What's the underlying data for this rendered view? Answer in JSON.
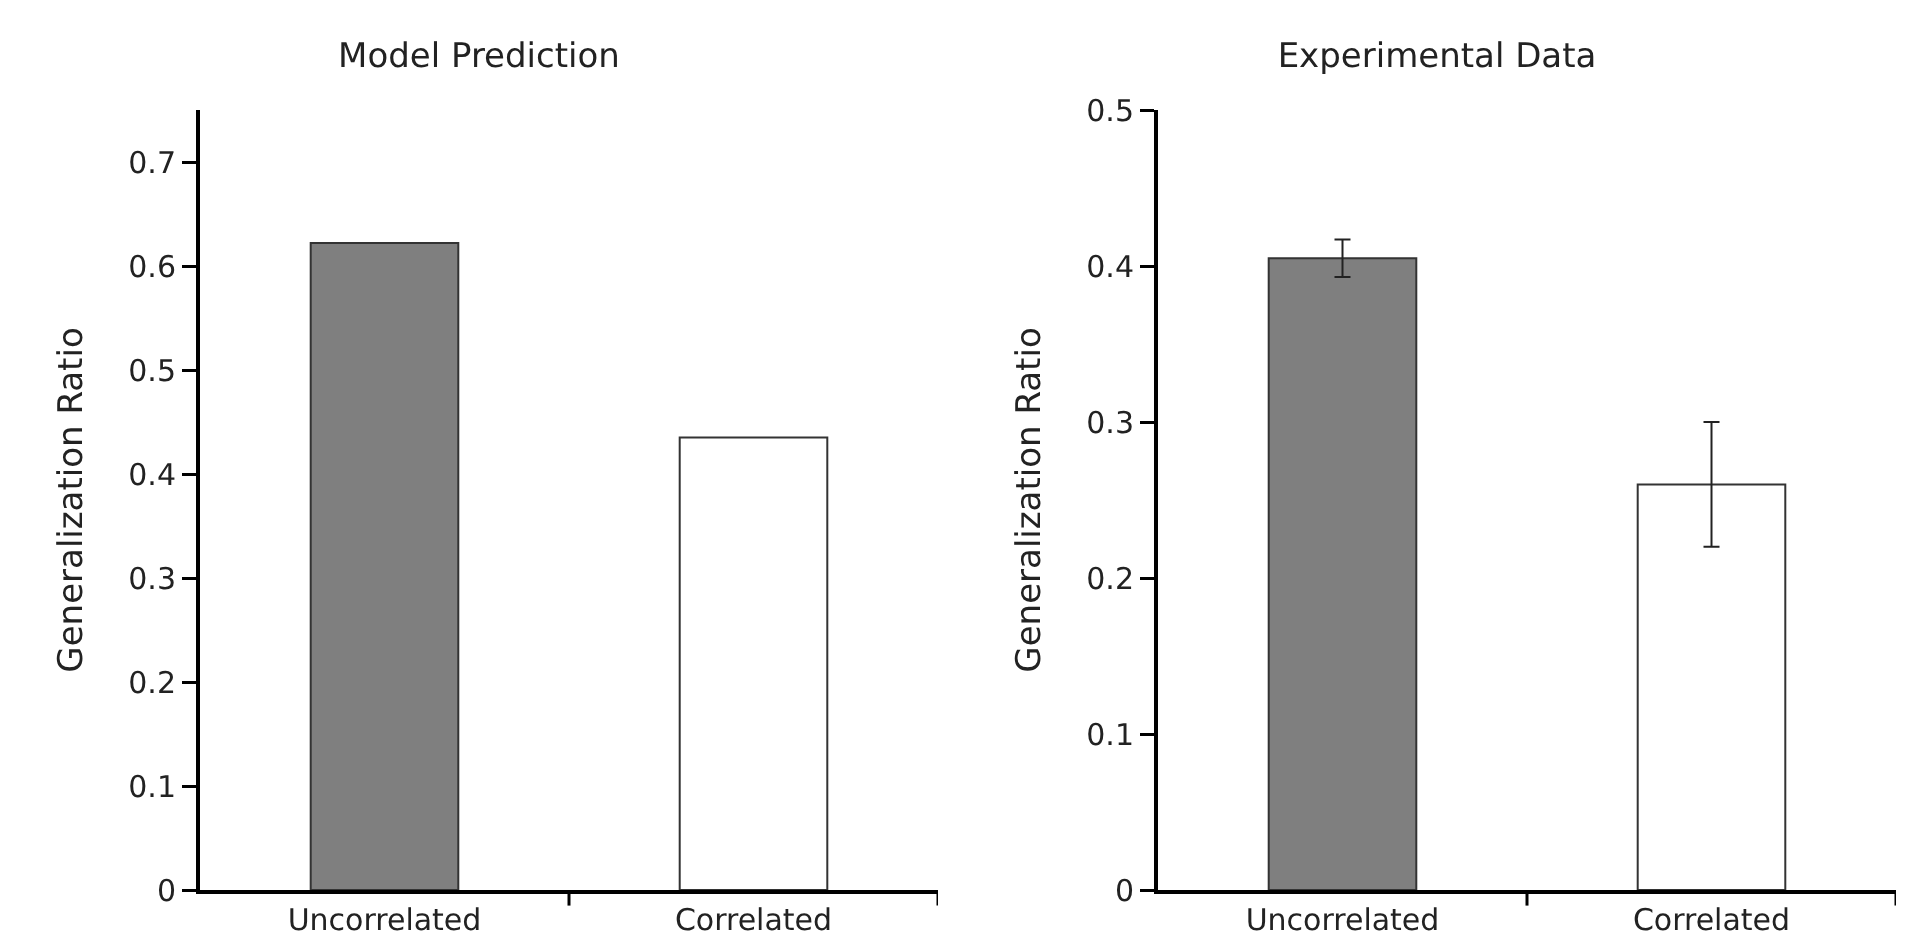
{
  "chart_data": [
    {
      "type": "bar",
      "title": "Model Prediction",
      "ylabel": "Generalization Ratio",
      "categories": [
        "Uncorrelated",
        "Correlated"
      ],
      "values": [
        0.622,
        0.435
      ],
      "colors": [
        "#7f7f7f",
        "#ffffff"
      ],
      "ylim": [
        0,
        0.75
      ],
      "yticks": [
        0,
        0.1,
        0.2,
        0.3,
        0.4,
        0.5,
        0.6,
        0.7
      ]
    },
    {
      "type": "bar",
      "title": "Experimental Data",
      "ylabel": "Generalization Ratio",
      "categories": [
        "Uncorrelated",
        "Correlated"
      ],
      "values": [
        0.405,
        0.26
      ],
      "errors": [
        0.012,
        0.04
      ],
      "colors": [
        "#7f7f7f",
        "#ffffff"
      ],
      "ylim": [
        0,
        0.5
      ],
      "yticks": [
        0,
        0.1,
        0.2,
        0.3,
        0.4,
        0.5
      ]
    }
  ]
}
